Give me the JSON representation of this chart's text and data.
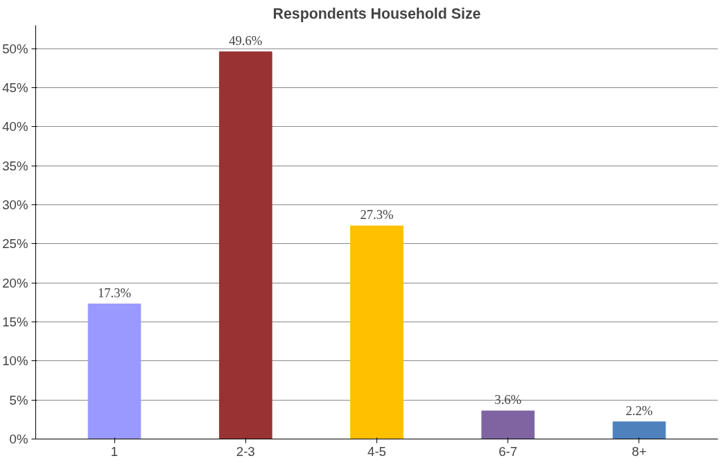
{
  "chart_data": {
    "type": "bar",
    "title": "Respondents Household Size",
    "categories": [
      "1",
      "2-3",
      "4-5",
      "6-7",
      "8+"
    ],
    "values": [
      17.3,
      49.6,
      27.3,
      3.6,
      2.2
    ],
    "colors": [
      "#9999ff",
      "#993333",
      "#ffc000",
      "#8064a2",
      "#4f81bd"
    ],
    "value_labels": [
      "17.3%",
      "49.6%",
      "27.3%",
      "3.6%",
      "2.2%"
    ],
    "ylim": [
      0,
      50
    ],
    "yticks": [
      {
        "value": 0,
        "label": "0%"
      },
      {
        "value": 5,
        "label": "5%"
      },
      {
        "value": 10,
        "label": "10%"
      },
      {
        "value": 15,
        "label": "15%"
      },
      {
        "value": 20,
        "label": "20%"
      },
      {
        "value": 25,
        "label": "25%"
      },
      {
        "value": 30,
        "label": "30%"
      },
      {
        "value": 35,
        "label": "35%"
      },
      {
        "value": 40,
        "label": "40%"
      },
      {
        "value": 45,
        "label": "45%"
      },
      {
        "value": 50,
        "label": "50%"
      }
    ],
    "grid": "y"
  }
}
